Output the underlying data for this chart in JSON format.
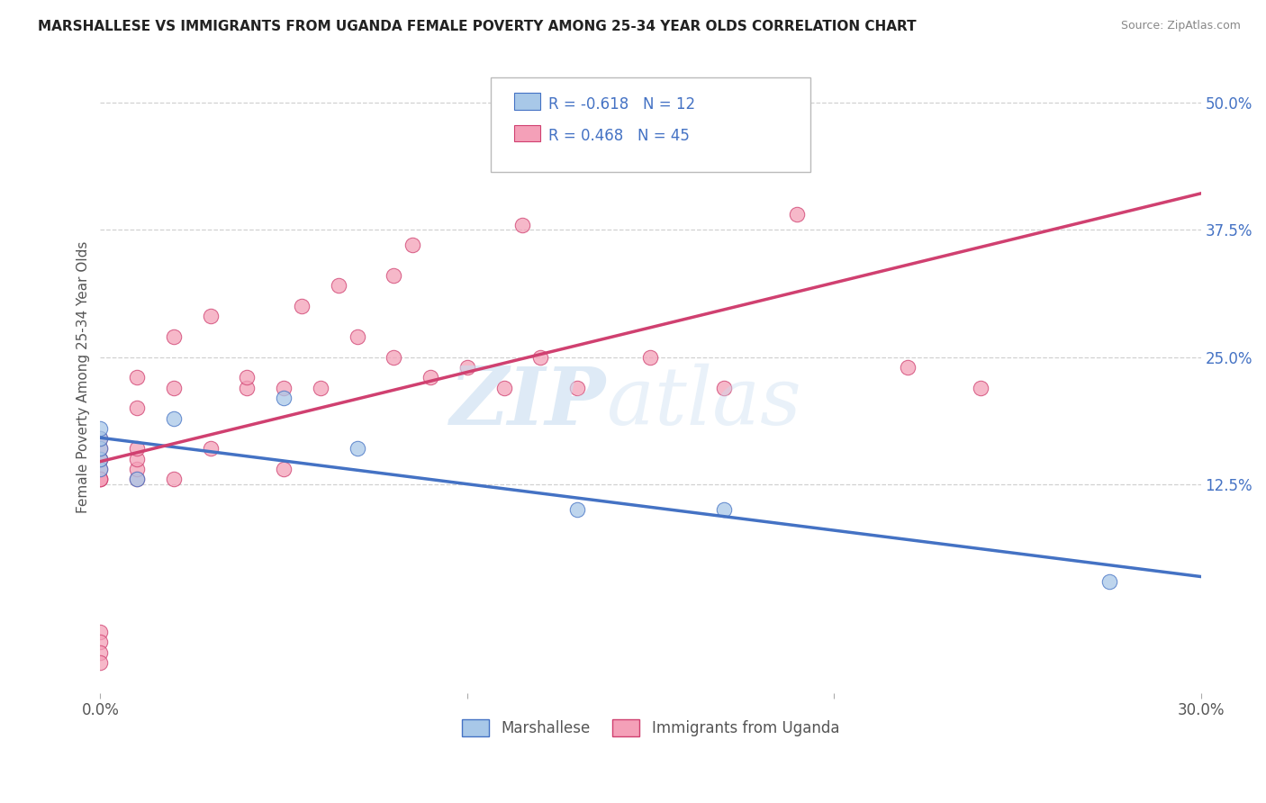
{
  "title": "MARSHALLESE VS IMMIGRANTS FROM UGANDA FEMALE POVERTY AMONG 25-34 YEAR OLDS CORRELATION CHART",
  "source": "Source: ZipAtlas.com",
  "ylabel": "Female Poverty Among 25-34 Year Olds",
  "yticks": [
    "12.5%",
    "25.0%",
    "37.5%",
    "50.0%"
  ],
  "ytick_vals": [
    0.125,
    0.25,
    0.375,
    0.5
  ],
  "xlim": [
    0.0,
    0.3
  ],
  "ylim": [
    -0.08,
    0.54
  ],
  "marshallese_color": "#a8c8e8",
  "marshallese_line_color": "#4472c4",
  "uganda_color": "#f4a0b8",
  "uganda_line_color": "#d04070",
  "R_marshallese": -0.618,
  "N_marshallese": 12,
  "R_uganda": 0.468,
  "N_uganda": 45,
  "marshallese_x": [
    0.0,
    0.0,
    0.0,
    0.0,
    0.0,
    0.01,
    0.02,
    0.05,
    0.07,
    0.13,
    0.17,
    0.275
  ],
  "marshallese_y": [
    0.14,
    0.15,
    0.16,
    0.17,
    0.18,
    0.13,
    0.19,
    0.21,
    0.16,
    0.1,
    0.1,
    0.03
  ],
  "uganda_x": [
    0.0,
    0.0,
    0.0,
    0.0,
    0.0,
    0.0,
    0.0,
    0.0,
    0.0,
    0.0,
    0.0,
    0.0,
    0.01,
    0.01,
    0.01,
    0.01,
    0.01,
    0.01,
    0.02,
    0.02,
    0.02,
    0.03,
    0.03,
    0.04,
    0.04,
    0.05,
    0.05,
    0.055,
    0.06,
    0.065,
    0.07,
    0.08,
    0.08,
    0.085,
    0.09,
    0.1,
    0.11,
    0.115,
    0.12,
    0.13,
    0.15,
    0.17,
    0.19,
    0.22,
    0.24
  ],
  "uganda_y": [
    0.13,
    0.13,
    0.14,
    0.15,
    0.15,
    0.16,
    0.17,
    0.13,
    -0.02,
    -0.03,
    -0.04,
    -0.05,
    0.13,
    0.14,
    0.15,
    0.16,
    0.2,
    0.23,
    0.13,
    0.22,
    0.27,
    0.16,
    0.29,
    0.22,
    0.23,
    0.14,
    0.22,
    0.3,
    0.22,
    0.32,
    0.27,
    0.25,
    0.33,
    0.36,
    0.23,
    0.24,
    0.22,
    0.38,
    0.25,
    0.22,
    0.25,
    0.22,
    0.39,
    0.24,
    0.22
  ],
  "legend_label_1": "Marshallese",
  "legend_label_2": "Immigrants from Uganda"
}
